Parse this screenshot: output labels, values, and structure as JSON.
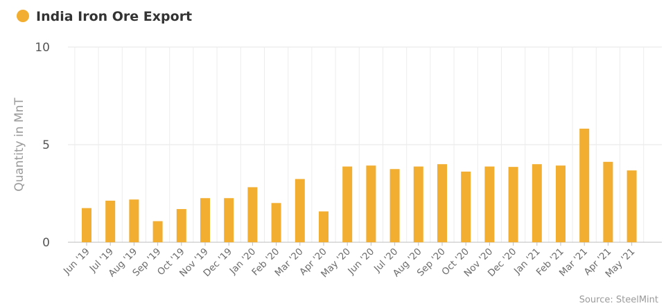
{
  "chart_data": {
    "type": "bar",
    "title": "",
    "ylabel": "Quantity in MnT",
    "xlabel": "",
    "ylim": [
      0,
      10
    ],
    "yticks": [
      0,
      5,
      10
    ],
    "grid": true,
    "legend_position": "top-left",
    "series": [
      {
        "name": "India Iron Ore Export",
        "color": "#f2ae30",
        "values": [
          1.75,
          2.13,
          2.19,
          1.08,
          1.7,
          2.26,
          2.26,
          2.82,
          2.01,
          3.24,
          1.58,
          3.88,
          3.93,
          3.75,
          3.88,
          4.0,
          3.62,
          3.88,
          3.86,
          4.0,
          3.93,
          5.82,
          4.12,
          3.68
        ]
      }
    ],
    "categories": [
      "Jun '19",
      "Jul '19",
      "Aug '19",
      "Sep '19",
      "Oct '19",
      "Nov '19",
      "Dec '19",
      "Jan '20",
      "Feb '20",
      "Mar '20",
      "Apr '20",
      "May '20",
      "Jun '20",
      "Jul '20",
      "Aug '20",
      "Sep '20",
      "Oct '20",
      "Nov '20",
      "Dec '20",
      "Jan '21",
      "Feb '21",
      "Mar '21",
      "Apr '21",
      "May '21"
    ],
    "source": "Source: SteelMint"
  }
}
